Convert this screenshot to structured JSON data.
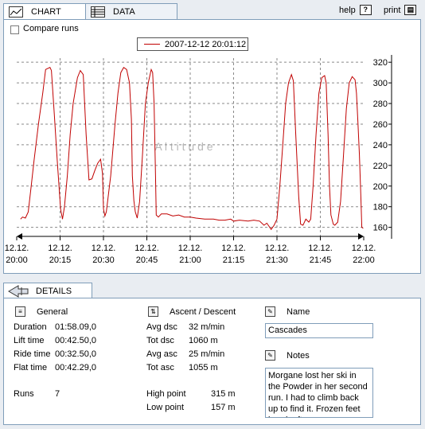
{
  "tabs": [
    {
      "label": "CHART",
      "icon": "chart-icon"
    },
    {
      "label": "DATA",
      "icon": "data-table-icon"
    }
  ],
  "help_label": "help",
  "print_label": "print",
  "compare_label": "Compare runs",
  "legend_label": "2007-12-12 20:01:12",
  "watermark": "A l t i t u d e",
  "chart_data": {
    "type": "line",
    "series_color": "#c00000",
    "ylim": [
      152,
      324
    ],
    "yticks": [
      160,
      180,
      200,
      220,
      240,
      260,
      280,
      300,
      320
    ],
    "xlim": [
      "20:00",
      "22:00"
    ],
    "xticks": [
      {
        "date": "12.12.",
        "time": "20:00"
      },
      {
        "date": "12.12.",
        "time": "20:15"
      },
      {
        "date": "12.12.",
        "time": "20:30"
      },
      {
        "date": "12.12.",
        "time": "20:45"
      },
      {
        "date": "12.12.",
        "time": "21:00"
      },
      {
        "date": "12.12.",
        "time": "21:15"
      },
      {
        "date": "12.12.",
        "time": "21:30"
      },
      {
        "date": "12.12.",
        "time": "21:45"
      },
      {
        "date": "12.12.",
        "time": "22:00"
      }
    ],
    "grid": true,
    "y_axis_side": "right",
    "points": [
      [
        "20:01:20",
        168
      ],
      [
        "20:02:00",
        170
      ],
      [
        "20:03:00",
        169
      ],
      [
        "20:04:00",
        175
      ],
      [
        "20:05:00",
        200
      ],
      [
        "20:06:00",
        225
      ],
      [
        "20:07:30",
        260
      ],
      [
        "20:09:00",
        290
      ],
      [
        "20:10:00",
        313
      ],
      [
        "20:11:30",
        315
      ],
      [
        "20:12:00",
        312
      ],
      [
        "20:13:00",
        270
      ],
      [
        "20:14:00",
        225
      ],
      [
        "20:15:10",
        178
      ],
      [
        "20:15:50",
        168
      ],
      [
        "20:16:30",
        180
      ],
      [
        "20:17:30",
        210
      ],
      [
        "20:18:30",
        250
      ],
      [
        "20:19:30",
        280
      ],
      [
        "20:21:00",
        305
      ],
      [
        "20:22:00",
        312
      ],
      [
        "20:23:00",
        308
      ],
      [
        "20:24:00",
        250
      ],
      [
        "20:25:00",
        206
      ],
      [
        "20:26:00",
        207
      ],
      [
        "20:27:00",
        215
      ],
      [
        "20:28:00",
        222
      ],
      [
        "20:29:00",
        226
      ],
      [
        "20:29:40",
        212
      ],
      [
        "20:30:00",
        178
      ],
      [
        "20:30:30",
        171
      ],
      [
        "20:31:00",
        175
      ],
      [
        "20:32:30",
        210
      ],
      [
        "20:34:00",
        260
      ],
      [
        "20:35:00",
        290
      ],
      [
        "20:36:00",
        310
      ],
      [
        "20:37:00",
        315
      ],
      [
        "20:38:00",
        313
      ],
      [
        "20:39:00",
        300
      ],
      [
        "20:39:40",
        265
      ],
      [
        "20:40:00",
        210
      ],
      [
        "20:40:30",
        186
      ],
      [
        "20:41:00",
        175
      ],
      [
        "20:41:40",
        169
      ],
      [
        "20:42:30",
        185
      ],
      [
        "20:43:30",
        230
      ],
      [
        "20:44:30",
        280
      ],
      [
        "20:45:30",
        300
      ],
      [
        "20:46:30",
        313
      ],
      [
        "20:47:00",
        310
      ],
      [
        "20:47:30",
        280
      ],
      [
        "20:48:00",
        210
      ],
      [
        "20:48:15",
        172
      ],
      [
        "20:49:00",
        170
      ],
      [
        "20:50:00",
        173
      ],
      [
        "20:52:00",
        173
      ],
      [
        "20:54:00",
        171
      ],
      [
        "20:56:00",
        172
      ],
      [
        "20:58:00",
        170
      ],
      [
        "21:00:00",
        170
      ],
      [
        "21:02:00",
        169
      ],
      [
        "21:05:00",
        168
      ],
      [
        "21:08:00",
        168
      ],
      [
        "21:10:00",
        167
      ],
      [
        "21:12:00",
        167
      ],
      [
        "21:14:00",
        168
      ],
      [
        "21:15:00",
        166
      ],
      [
        "21:17:00",
        167
      ],
      [
        "21:20:00",
        166
      ],
      [
        "21:22:00",
        167
      ],
      [
        "21:24:00",
        166
      ],
      [
        "21:25:30",
        162
      ],
      [
        "21:26:30",
        164
      ],
      [
        "21:27:30",
        160
      ],
      [
        "21:28:00",
        158
      ],
      [
        "21:29:00",
        162
      ],
      [
        "21:30:00",
        168
      ],
      [
        "21:31:00",
        200
      ],
      [
        "21:32:00",
        240
      ],
      [
        "21:33:00",
        280
      ],
      [
        "21:34:00",
        300
      ],
      [
        "21:35:00",
        308
      ],
      [
        "21:35:40",
        302
      ],
      [
        "21:36:30",
        250
      ],
      [
        "21:37:30",
        190
      ],
      [
        "21:38:10",
        163
      ],
      [
        "21:39:00",
        162
      ],
      [
        "21:40:00",
        168
      ],
      [
        "21:41:00",
        165
      ],
      [
        "21:41:40",
        168
      ],
      [
        "21:42:30",
        200
      ],
      [
        "21:43:30",
        250
      ],
      [
        "21:44:30",
        290
      ],
      [
        "21:45:30",
        305
      ],
      [
        "21:46:30",
        307
      ],
      [
        "21:47:00",
        300
      ],
      [
        "21:47:40",
        250
      ],
      [
        "21:48:10",
        200
      ],
      [
        "21:48:40",
        172
      ],
      [
        "21:49:30",
        163
      ],
      [
        "21:50:00",
        162
      ],
      [
        "21:51:00",
        165
      ],
      [
        "21:52:00",
        185
      ],
      [
        "21:53:00",
        230
      ],
      [
        "21:54:00",
        275
      ],
      [
        "21:55:00",
        300
      ],
      [
        "21:56:00",
        306
      ],
      [
        "21:57:00",
        303
      ],
      [
        "21:57:30",
        290
      ],
      [
        "21:58:00",
        262
      ],
      [
        "21:58:30",
        230
      ],
      [
        "21:59:00",
        190
      ],
      [
        "21:59:20",
        160
      ],
      [
        "21:59:50",
        159
      ]
    ]
  },
  "details": {
    "tab_label": "DETAILS",
    "general": {
      "title": "General",
      "rows": [
        {
          "label": "Duration",
          "value": "01:58.09,0"
        },
        {
          "label": "Lift time",
          "value": "00:42.50,0"
        },
        {
          "label": "Ride time",
          "value": "00:32.50,0"
        },
        {
          "label": "Flat time",
          "value": "00:42.29,0"
        }
      ],
      "runs_label": "Runs",
      "runs_value": "7"
    },
    "ascent": {
      "title": "Ascent / Descent",
      "rows": [
        {
          "label": "Avg dsc",
          "value": "32 m/min"
        },
        {
          "label": "Tot dsc",
          "value": "1060 m"
        },
        {
          "label": "Avg asc",
          "value": "25 m/min"
        },
        {
          "label": "Tot asc",
          "value": "1055 m"
        }
      ],
      "high_label": "High point",
      "high_value": "315 m",
      "low_label": "Low point",
      "low_value": "157 m"
    },
    "name": {
      "title": "Name",
      "value": "Cascades"
    },
    "notes": {
      "title": "Notes",
      "value": "Morgane lost her ski in the Powder in her second run. I had to climb back up to find it. Frozen feet break after"
    }
  }
}
